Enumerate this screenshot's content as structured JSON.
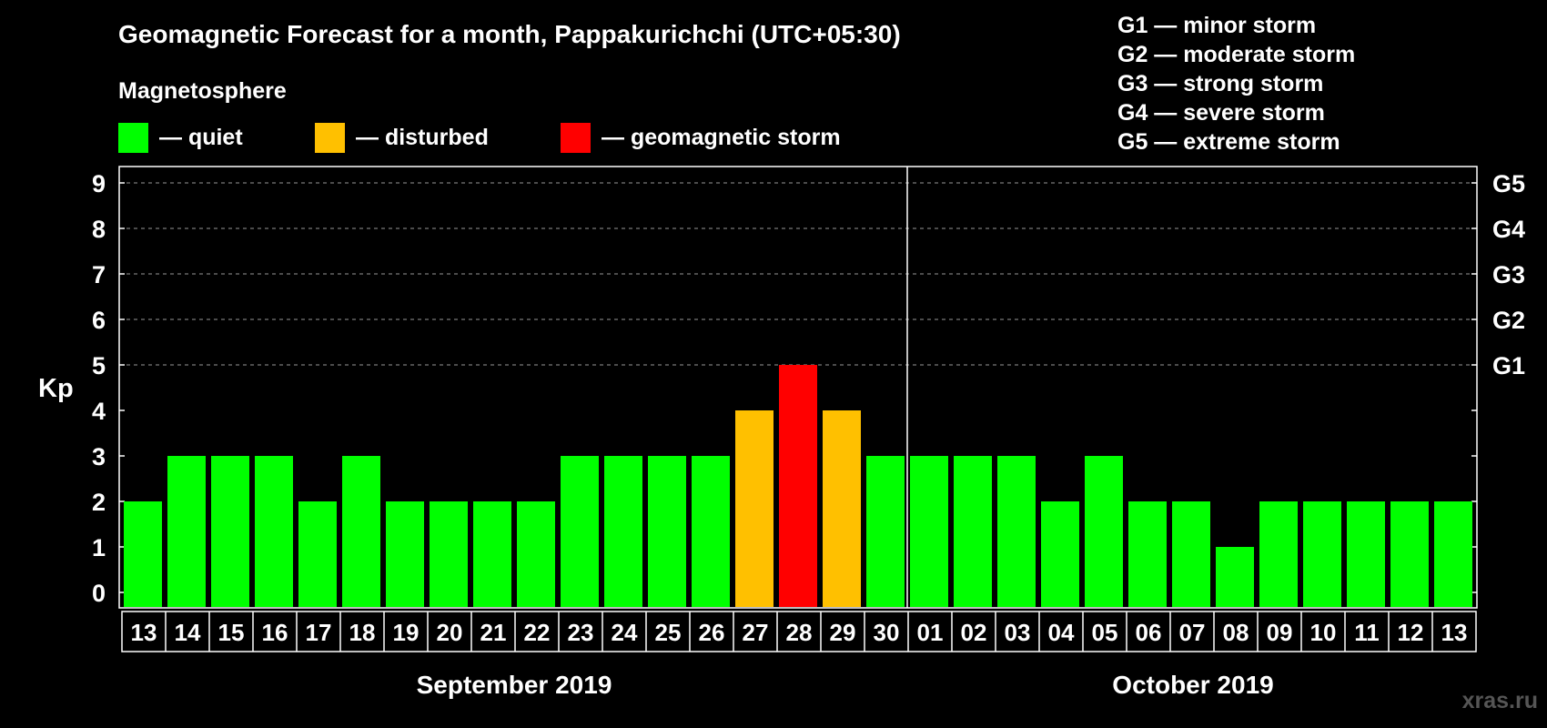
{
  "title": "Geomagnetic Forecast for a month, Pappakurichchi (UTC+05:30)",
  "legend": {
    "heading": "Magnetosphere",
    "items": [
      {
        "label": "— quiet",
        "color": "#00ff00"
      },
      {
        "label": "— disturbed",
        "color": "#ffc000"
      },
      {
        "label": "— geomagnetic storm",
        "color": "#ff0000"
      }
    ]
  },
  "storm_scale": [
    "G1 — minor storm",
    "G2 — moderate storm",
    "G3 — strong storm",
    "G4 — severe storm",
    "G5 — extreme storm"
  ],
  "months": {
    "left": "September 2019",
    "right": "October 2019"
  },
  "watermark": "xras.ru",
  "chart_data": {
    "type": "bar",
    "ylabel": "Kp",
    "ylim": [
      0,
      9
    ],
    "yticks": [
      "0",
      "1",
      "2",
      "3",
      "4",
      "5",
      "6",
      "7",
      "8",
      "9"
    ],
    "right_ticks": [
      {
        "kp": 5,
        "label": "G1"
      },
      {
        "kp": 6,
        "label": "G2"
      },
      {
        "kp": 7,
        "label": "G3"
      },
      {
        "kp": 8,
        "label": "G4"
      },
      {
        "kp": 9,
        "label": "G5"
      }
    ],
    "grid": "dashed horizontal at 5-9",
    "categories": [
      "13",
      "14",
      "15",
      "16",
      "17",
      "18",
      "19",
      "20",
      "21",
      "22",
      "23",
      "24",
      "25",
      "26",
      "27",
      "28",
      "29",
      "30",
      "01",
      "02",
      "03",
      "04",
      "05",
      "06",
      "07",
      "08",
      "09",
      "10",
      "11",
      "12",
      "13"
    ],
    "values": [
      2,
      3,
      3,
      3,
      2,
      3,
      2,
      2,
      2,
      2,
      3,
      3,
      3,
      3,
      4,
      5,
      4,
      3,
      3,
      3,
      3,
      2,
      3,
      2,
      2,
      1,
      2,
      2,
      2,
      2,
      2
    ],
    "colors": {
      "quiet": "#00ff00",
      "disturbed": "#ffc000",
      "storm": "#ff0000"
    }
  }
}
